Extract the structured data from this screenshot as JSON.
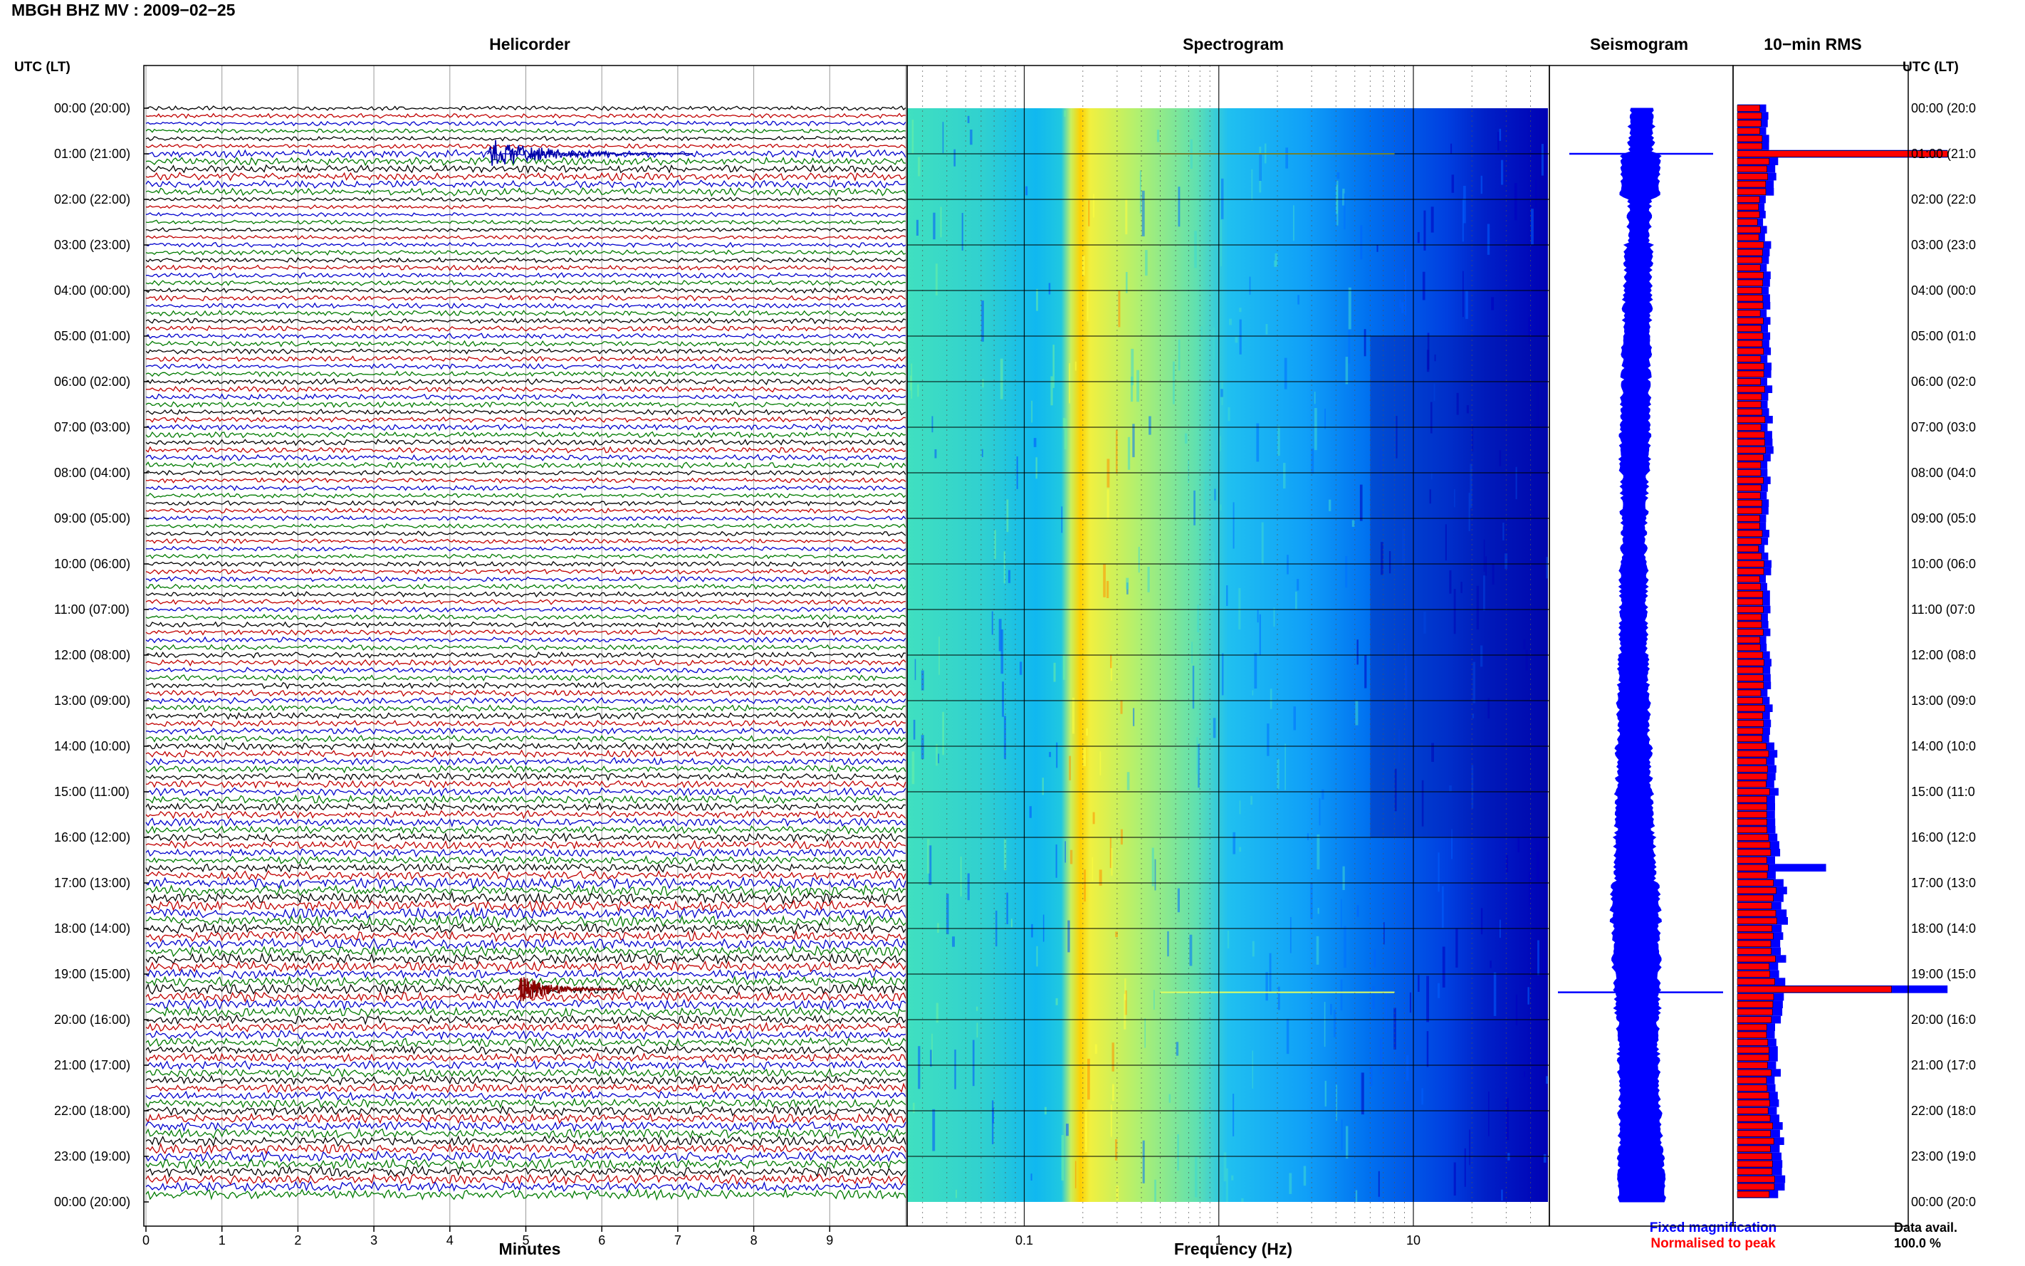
{
  "header": {
    "station_title": "MBGH BHZ MV : 2009−02−25",
    "left_axis_title": "UTC (LT)",
    "right_axis_title": "UTC (LT)"
  },
  "panels": {
    "helicorder_title": "Helicorder",
    "spectrogram_title": "Spectrogram",
    "seismogram_title": "Seismogram",
    "rms_title": "10−min RMS"
  },
  "legend": {
    "fixed": "Fixed magnification",
    "normalised": "Normalised to peak",
    "data_avail_label": "Data avail.",
    "data_avail_value": "100.0 %"
  },
  "colors": {
    "trace_cycle": [
      "#000000",
      "#c00000",
      "#0000cc",
      "#007a00"
    ],
    "fixed_magnification": "#0000ff",
    "normalised_to_peak": "#ff0000",
    "spectrogram_scale": [
      "#0000b4",
      "#0050ff",
      "#00aaff",
      "#40e0c0",
      "#c8f060",
      "#ffff00",
      "#ff8000",
      "#ff0000"
    ]
  },
  "chart_data": [
    {
      "type": "line",
      "title": "Helicorder",
      "xlabel": "Minutes",
      "xticks": [
        "0",
        "1",
        "2",
        "3",
        "4",
        "5",
        "6",
        "7",
        "8",
        "9"
      ],
      "xlim": [
        0,
        10
      ],
      "row_minutes": 10,
      "y_tick_labels": [
        "00:00 (20:00)",
        "01:00 (21:00)",
        "02:00 (22:00)",
        "03:00 (23:00)",
        "04:00 (00:00)",
        "05:00 (01:00)",
        "06:00 (02:00)",
        "07:00 (03:00)",
        "08:00 (04:00)",
        "09:00 (05:00)",
        "10:00 (06:00)",
        "11:00 (07:00)",
        "12:00 (08:00)",
        "13:00 (09:00)",
        "14:00 (10:00)",
        "15:00 (11:00)",
        "16:00 (12:00)",
        "17:00 (13:00)",
        "18:00 (14:00)",
        "19:00 (15:00)",
        "20:00 (16:00)",
        "21:00 (17:00)",
        "22:00 (18:00)",
        "23:00 (19:00)",
        "00:00 (20:00)"
      ],
      "right_tick_labels": [
        "00:00 (20:0",
        "01:00 (21:0",
        "02:00 (22:0",
        "03:00 (23:0",
        "04:00 (00:0",
        "05:00 (01:0",
        "06:00 (02:0",
        "07:00 (03:0",
        "08:00 (04:0",
        "09:00 (05:0",
        "10:00 (06:0",
        "11:00 (07:0",
        "12:00 (08:0",
        "13:00 (09:0",
        "14:00 (10:0",
        "15:00 (11:0",
        "16:00 (12:0",
        "17:00 (13:0",
        "18:00 (14:0",
        "19:00 (15:0",
        "20:00 (16:0",
        "21:00 (17:0",
        "22:00 (18:0",
        "23:00 (19:0",
        "00:00 (20:0"
      ],
      "events": [
        {
          "hour": 1.0,
          "start_min": 4.5,
          "end_min": 7.2
        },
        {
          "hour": 19.4,
          "start_min": 4.9,
          "end_min": 6.2
        }
      ]
    },
    {
      "type": "heatmap",
      "title": "Spectrogram",
      "xlabel": "Frequency (Hz)",
      "x_scale": "log",
      "xlim": [
        0.025,
        50
      ],
      "xticks": [
        "0.1",
        "1",
        "10"
      ],
      "y_hours": [
        0,
        24
      ]
    },
    {
      "type": "line",
      "title": "Seismogram",
      "y_hours": [
        0,
        24
      ],
      "spikes_hours": [
        1.0,
        19.4
      ]
    },
    {
      "type": "bar",
      "title": "10−min RMS",
      "bin_minutes": 10,
      "y_hours": [
        0,
        24
      ],
      "series": [
        {
          "name": "Fixed magnification",
          "color": "#0000ff"
        },
        {
          "name": "Normalised to peak",
          "color": "#ff0000"
        }
      ],
      "hourly_level": [
        0.42,
        0.55,
        0.4,
        0.44,
        0.45,
        0.45,
        0.46,
        0.47,
        0.43,
        0.42,
        0.44,
        0.45,
        0.47,
        0.49,
        0.52,
        0.55,
        0.57,
        0.66,
        0.64,
        0.62,
        0.58,
        0.58,
        0.61,
        0.63,
        0.63
      ],
      "peaks": [
        {
          "hour": 1.0,
          "level": 1.0
        },
        {
          "hour": 19.4,
          "level": 1.0
        }
      ]
    }
  ]
}
